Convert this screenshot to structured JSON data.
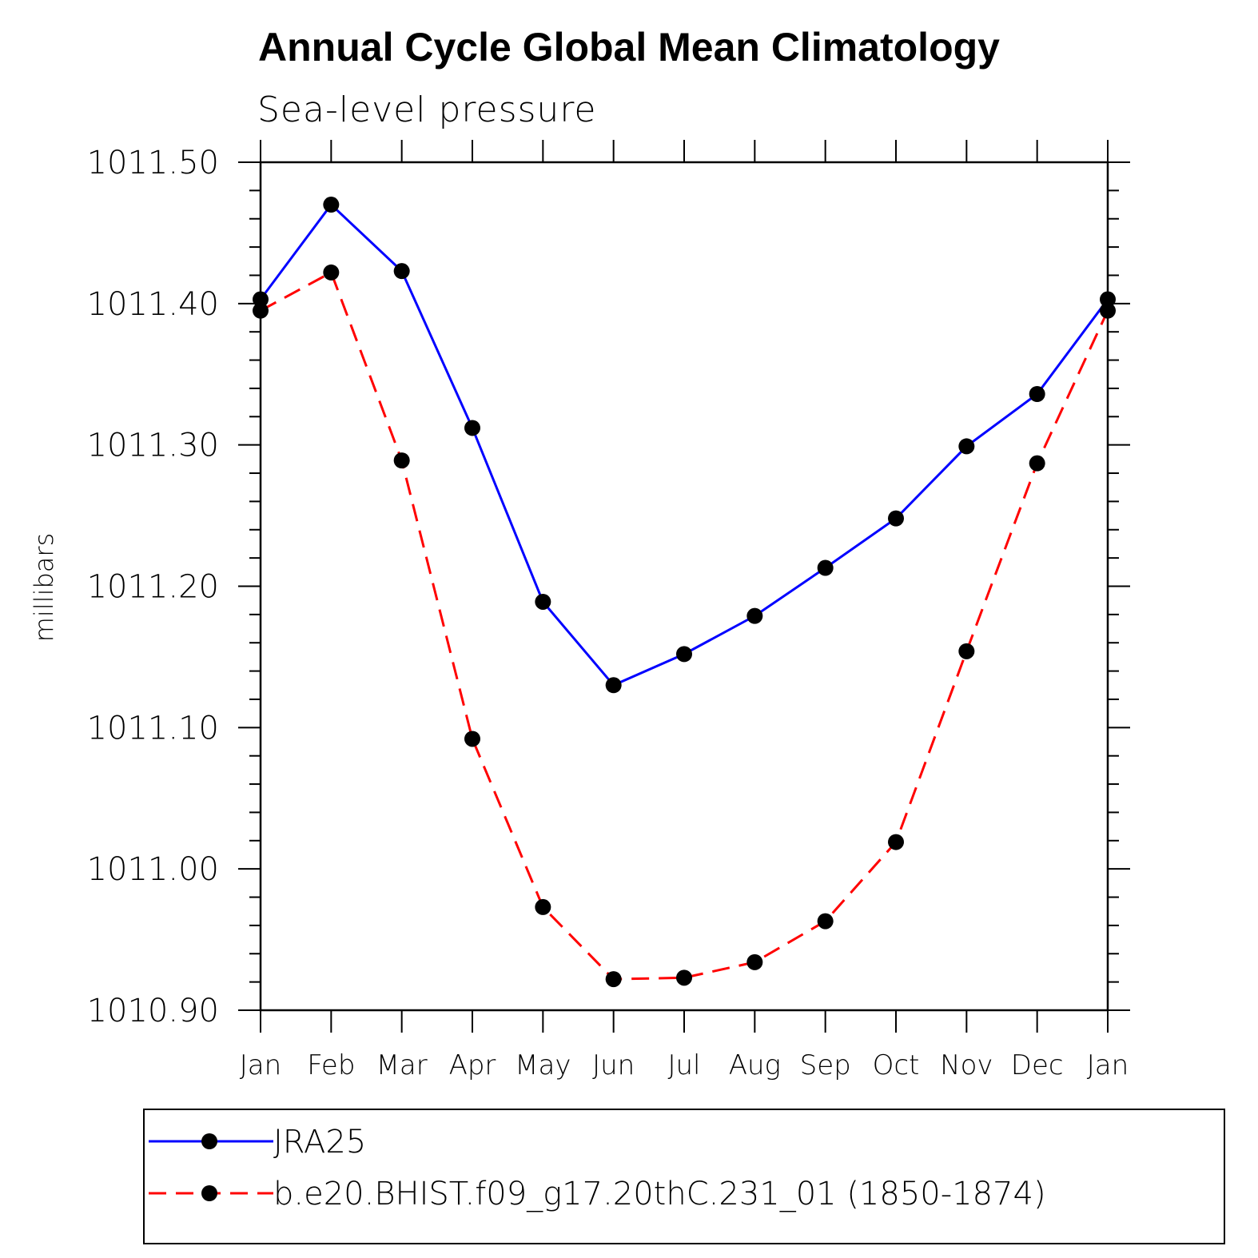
{
  "chart_data": {
    "type": "line",
    "title": "Annual Cycle Global Mean Climatology",
    "subtitle": "Sea-level pressure",
    "xlabel": "",
    "ylabel": "millibars",
    "categories": [
      "Jan",
      "Feb",
      "Mar",
      "Apr",
      "May",
      "Jun",
      "Jul",
      "Aug",
      "Sep",
      "Oct",
      "Nov",
      "Dec",
      "Jan"
    ],
    "ylim": [
      1010.9,
      1011.5
    ],
    "yticks": [
      "1010.90",
      "1011.00",
      "1011.10",
      "1011.20",
      "1011.30",
      "1011.40",
      "1011.50"
    ],
    "grid": false,
    "legend_position": "bottom",
    "series": [
      {
        "name": "JRA25",
        "color": "#0000ff",
        "dash": "solid",
        "marker": "filled-circle",
        "values": [
          1011.403,
          1011.47,
          1011.423,
          1011.312,
          1011.189,
          1011.13,
          1011.152,
          1011.179,
          1011.213,
          1011.248,
          1011.299,
          1011.336,
          1011.403
        ]
      },
      {
        "name": "b.e20.BHIST.f09_g17.20thC.231_01 (1850-1874)",
        "color": "#ff0000",
        "dash": "dashed",
        "marker": "filled-circle",
        "values": [
          1011.395,
          1011.422,
          1011.289,
          1011.092,
          1010.973,
          1010.922,
          1010.923,
          1010.934,
          1010.963,
          1011.019,
          1011.154,
          1011.287,
          1011.395
        ]
      }
    ]
  }
}
